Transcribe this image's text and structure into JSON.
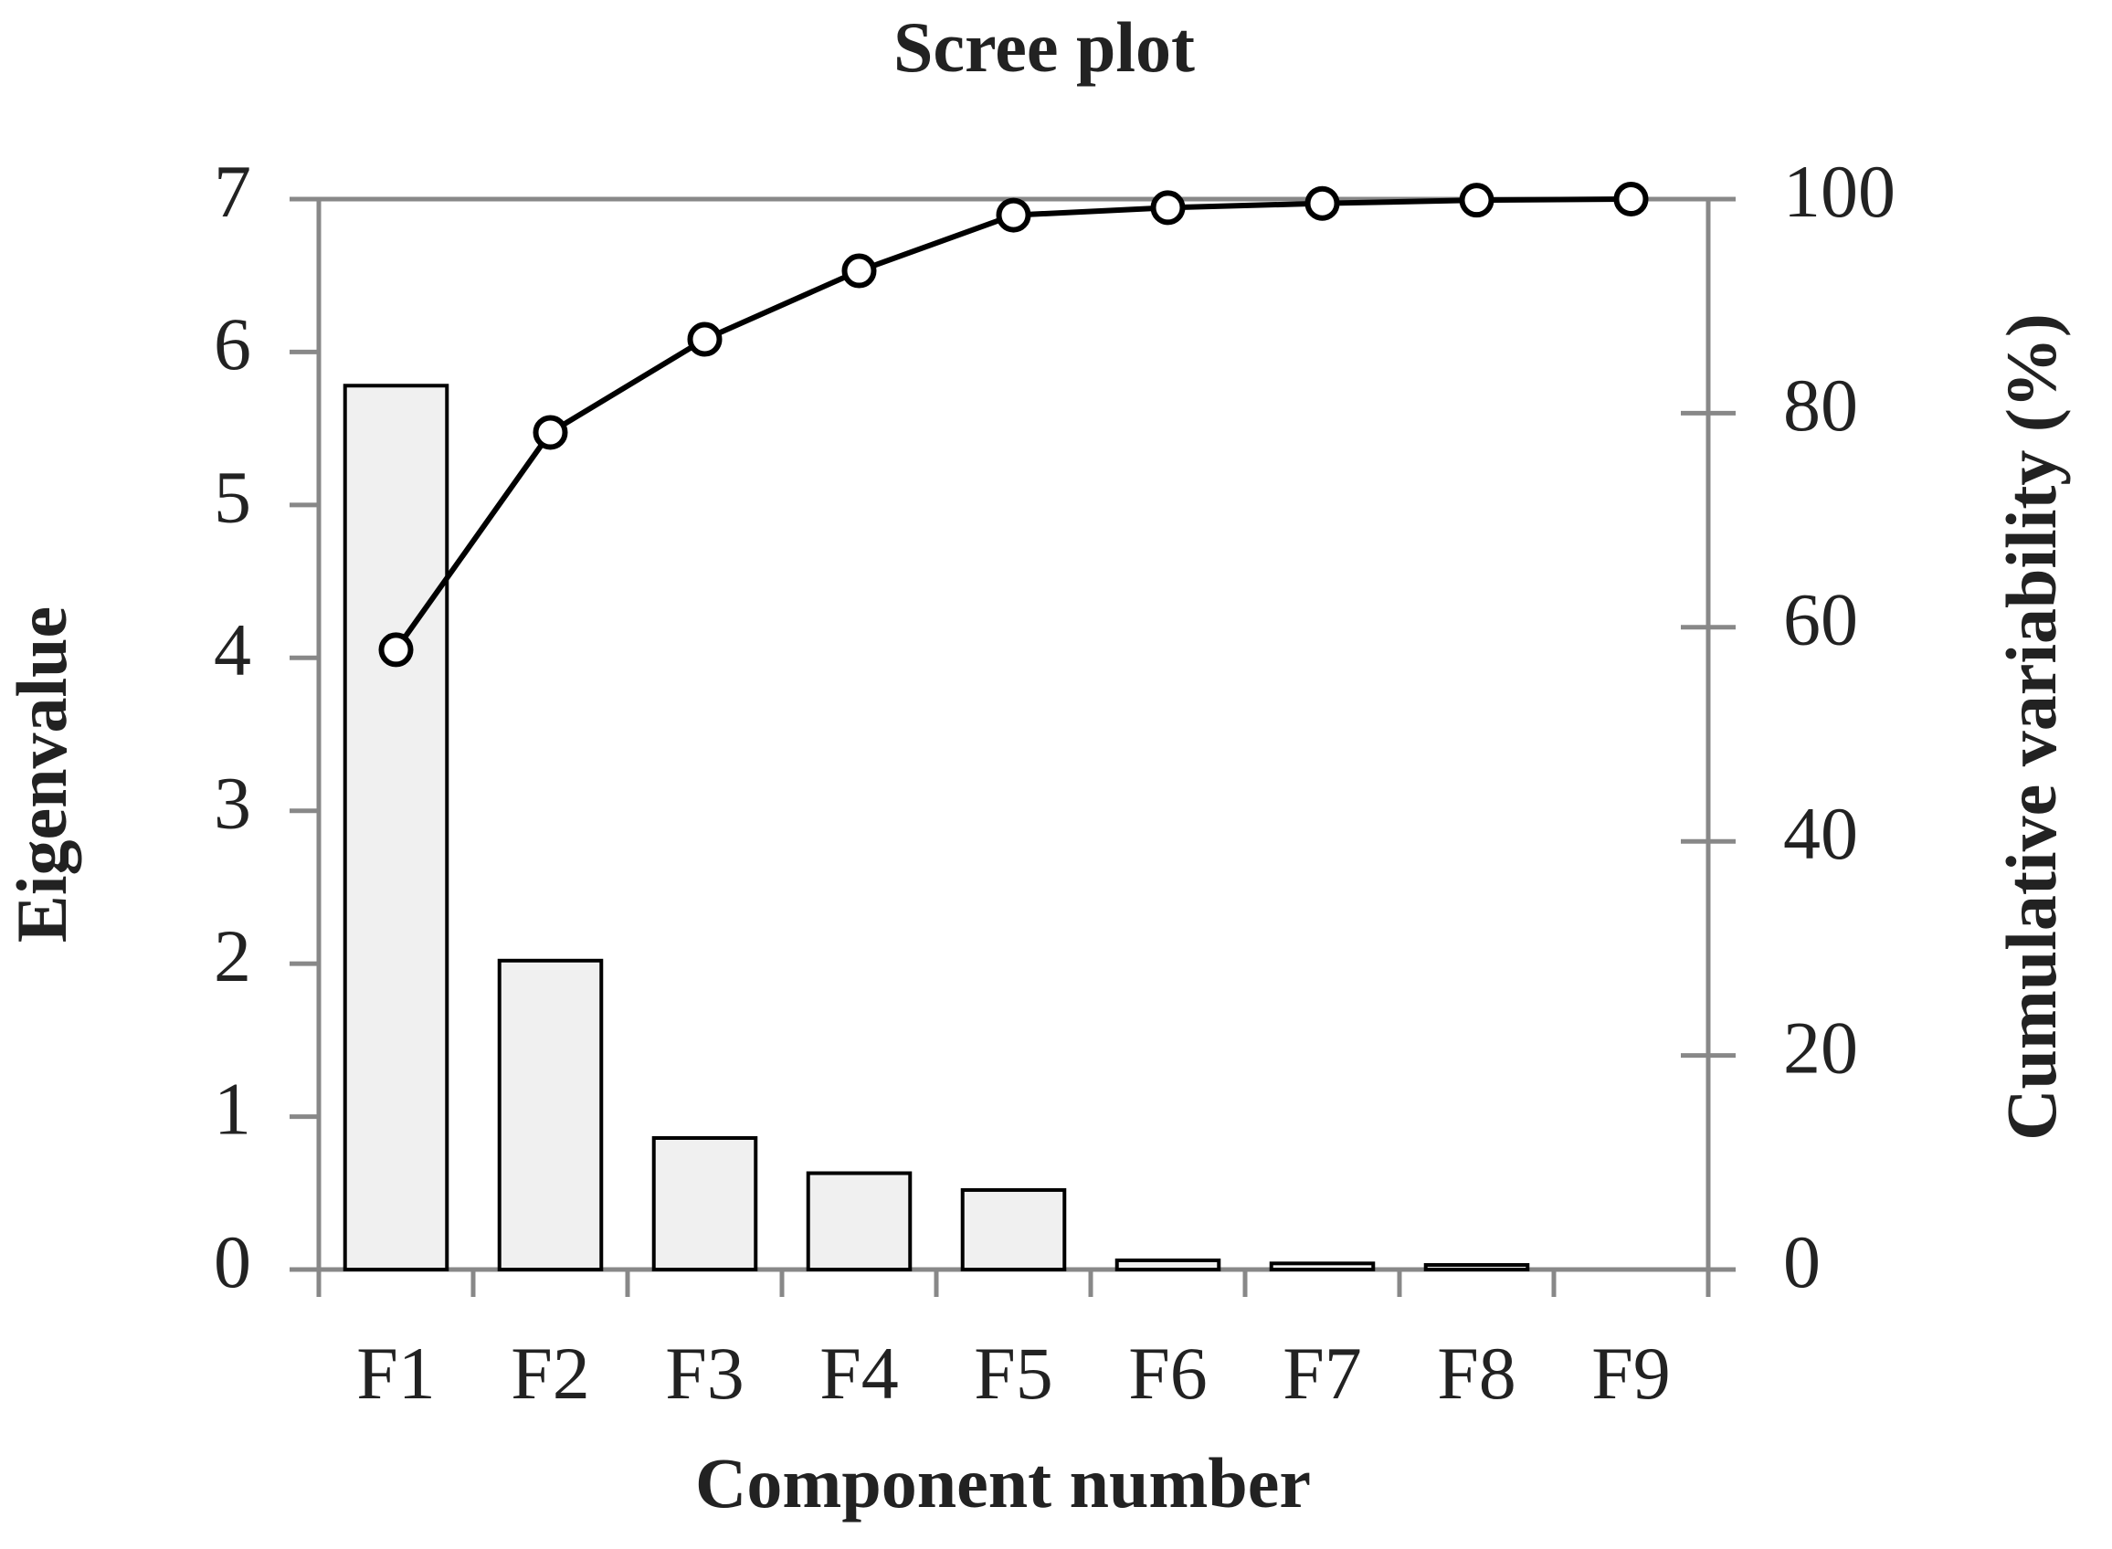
{
  "chart_data": {
    "type": "bar",
    "title": "Scree plot",
    "x_label": "Component number",
    "y_label": "Eigenvalue",
    "y2_label": "Cumulative variability (%)",
    "categories": [
      "F1",
      "F2",
      "F3",
      "F4",
      "F5",
      "F6",
      "F7",
      "F8",
      "F9"
    ],
    "series": [
      {
        "type": "bar",
        "color": "#f0f0f0",
        "values": [
          5.78,
          2.02,
          0.86,
          0.63,
          0.52,
          0.06,
          0.04,
          0.03,
          0
        ]
      },
      {
        "type": "line",
        "axis": "y2",
        "color": "#000000",
        "values": [
          57.9,
          78.2,
          86.9,
          93.3,
          98.5,
          99.2,
          99.6,
          99.9,
          100
        ]
      }
    ],
    "ylim": [
      0,
      7
    ],
    "yticks": [
      0,
      1,
      2,
      3,
      4,
      5,
      6,
      7
    ],
    "y2lim": [
      0,
      100
    ],
    "y2ticks": [
      0,
      20,
      40,
      60,
      80,
      100
    ],
    "grid": false
  }
}
